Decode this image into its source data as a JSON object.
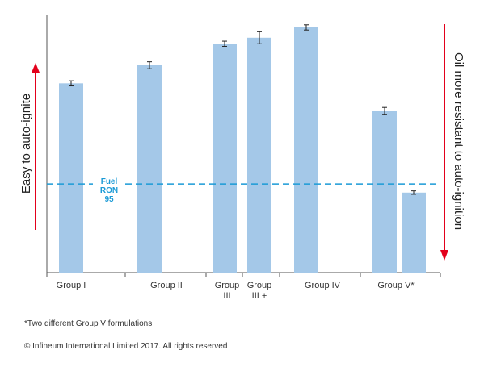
{
  "chart_data": {
    "type": "bar",
    "title": "",
    "xlabel": "",
    "ylabel": "",
    "ylim": [
      0,
      300
    ],
    "grid": false,
    "bars": [
      {
        "category": "Group I",
        "value": 220,
        "error": 3
      },
      {
        "category": "Group II",
        "value": 241,
        "error": 4
      },
      {
        "category": "Group III",
        "value": 266,
        "error": 3
      },
      {
        "category": "Group III +",
        "value": 273,
        "error": 7
      },
      {
        "category": "Group IV",
        "value": 285,
        "error": 3
      },
      {
        "category": "Group V*",
        "value": 188,
        "error": 4
      },
      {
        "category": "Group V*",
        "value": 93,
        "error": 2
      }
    ],
    "category_labels": [
      {
        "id": "g1",
        "lines": [
          "Group I"
        ]
      },
      {
        "id": "g2",
        "lines": [
          "Group II"
        ]
      },
      {
        "id": "g3",
        "lines": [
          "Group",
          "III"
        ]
      },
      {
        "id": "g3p",
        "lines": [
          "Group",
          "III +"
        ]
      },
      {
        "id": "g4",
        "lines": [
          "Group IV"
        ]
      },
      {
        "id": "g5",
        "lines": [
          "Group V*"
        ]
      }
    ],
    "reference_line": {
      "value": 103,
      "label_lines": [
        "Fuel",
        "RON",
        "95"
      ],
      "color": "#1a9ad6"
    },
    "left_annotation": {
      "text": "Easy to auto-ignite",
      "arrow_color": "#e3001b"
    },
    "right_annotation": {
      "text": "Oil more resistant to auto-ignition",
      "arrow_color": "#e3001b"
    },
    "colors": {
      "bar": "#a4c8e8",
      "axis": "#555555",
      "error_bar": "#222222"
    }
  },
  "footnotes": {
    "note": "*Two different Group V formulations",
    "copyright": "© Infineum International Limited 2017. All rights reserved"
  }
}
